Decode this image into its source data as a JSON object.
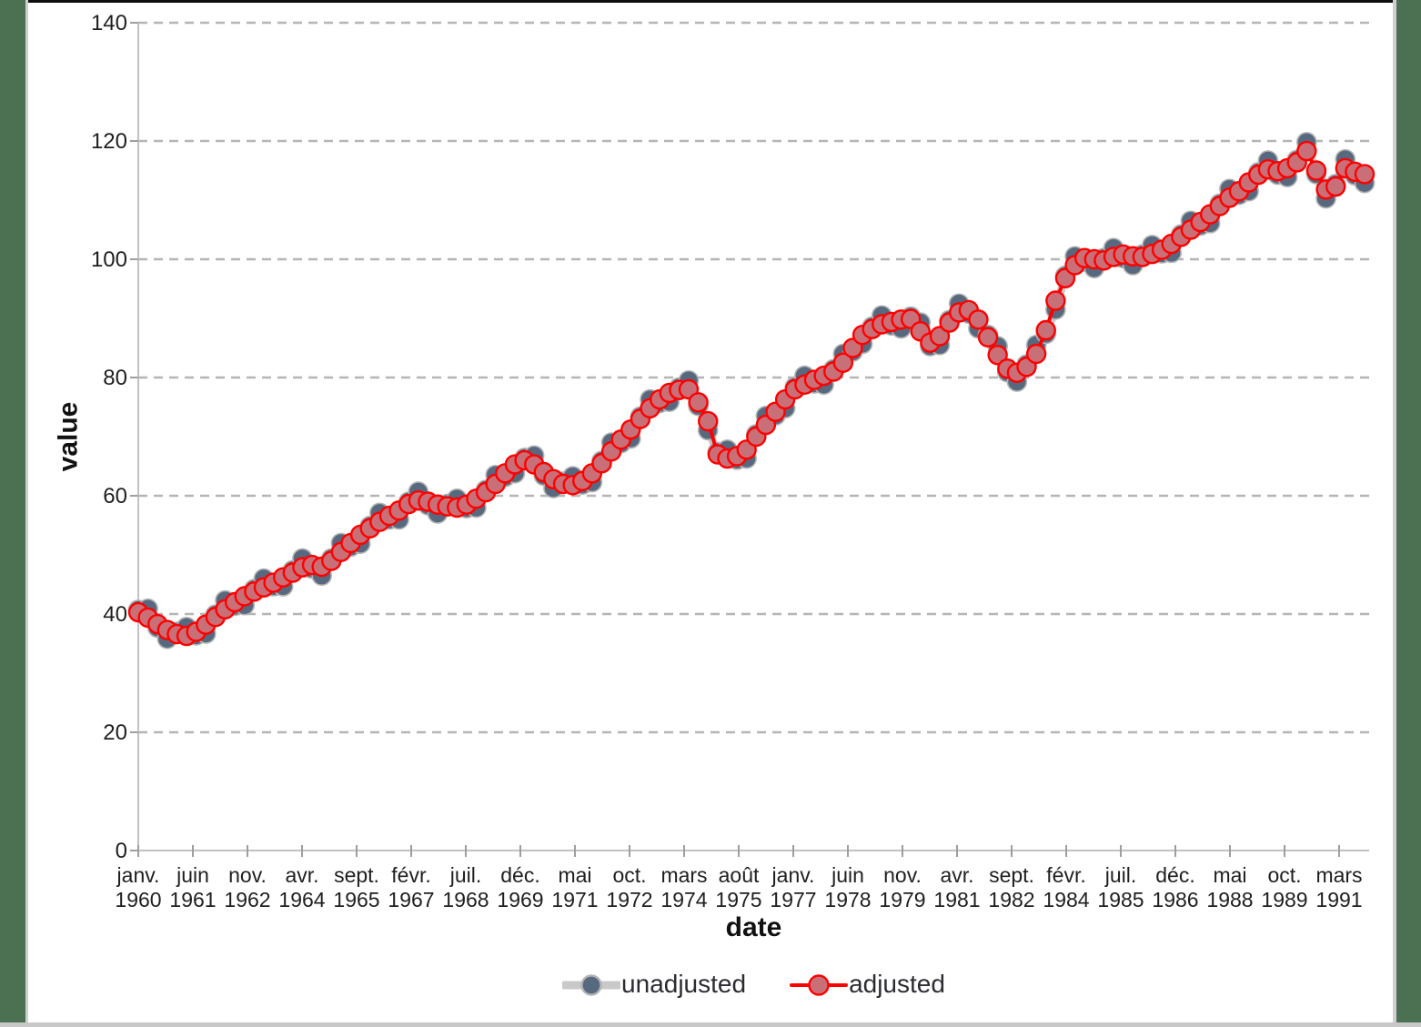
{
  "page": {
    "background": "#ffffff",
    "side_strip_color": "#4c7152",
    "top_bar_color": "#0d0d0d",
    "bottom_bar_color": "#c8c8c8"
  },
  "chart_data": {
    "type": "line",
    "title": "",
    "xlabel": "date",
    "ylabel": "value",
    "ylim": [
      0,
      140
    ],
    "y_ticks": [
      0,
      20,
      40,
      60,
      80,
      100,
      120,
      140
    ],
    "grid": "horizontal dashed gridlines",
    "legend_position": "bottom-center",
    "x_note": "quarterly points read off the chart, janv. 1960 to dec. 1991",
    "x_ticks": [
      {
        "month": "janv.",
        "year": "1960"
      },
      {
        "month": "juin",
        "year": "1961"
      },
      {
        "month": "nov.",
        "year": "1962"
      },
      {
        "month": "avr.",
        "year": "1964"
      },
      {
        "month": "sept.",
        "year": "1965"
      },
      {
        "month": "févr.",
        "year": "1967"
      },
      {
        "month": "juil.",
        "year": "1968"
      },
      {
        "month": "déc.",
        "year": "1969"
      },
      {
        "month": "mai",
        "year": "1971"
      },
      {
        "month": "oct.",
        "year": "1972"
      },
      {
        "month": "mars",
        "year": "1974"
      },
      {
        "month": "août",
        "year": "1975"
      },
      {
        "month": "janv.",
        "year": "1977"
      },
      {
        "month": "juin",
        "year": "1978"
      },
      {
        "month": "nov.",
        "year": "1979"
      },
      {
        "month": "avr.",
        "year": "1981"
      },
      {
        "month": "sept.",
        "year": "1982"
      },
      {
        "month": "févr.",
        "year": "1984"
      },
      {
        "month": "juil.",
        "year": "1985"
      },
      {
        "month": "déc.",
        "year": "1986"
      },
      {
        "month": "mai",
        "year": "1988"
      },
      {
        "month": "oct.",
        "year": "1989"
      },
      {
        "month": "mars",
        "year": "1991"
      }
    ],
    "series": [
      {
        "name": "unadjusted",
        "line_color": "#c9c9c9",
        "line_width": 9,
        "marker_fill": "#56697f",
        "marker_stroke": "#b3b3b3",
        "values": [
          40.7,
          40.9,
          37.7,
          35.8,
          37.0,
          37.8,
          36.4,
          36.7,
          39.9,
          42.3,
          41.4,
          41.5,
          44.2,
          46.0,
          44.7,
          44.7,
          47.4,
          49.4,
          47.7,
          46.5,
          49.4,
          52.0,
          51.4,
          51.9,
          54.9,
          57.1,
          56.0,
          56.0,
          59.0,
          60.7,
          58.4,
          57.0,
          58.6,
          59.5,
          57.9,
          58.0,
          61.0,
          63.5,
          63.2,
          63.8,
          66.4,
          66.8,
          63.4,
          61.3,
          62.4,
          63.3,
          61.9,
          62.3,
          65.9,
          69.0,
          68.9,
          69.7,
          73.4,
          76.3,
          75.7,
          75.9,
          78.3,
          79.5,
          75.2,
          71.1,
          67.4,
          67.8,
          66.1,
          66.3,
          70.4,
          73.5,
          73.6,
          74.8,
          78.4,
          80.3,
          79.0,
          78.8,
          81.4,
          84.0,
          84.4,
          85.7,
          88.6,
          90.5,
          88.8,
          88.3,
          90.3,
          89.3,
          85.3,
          85.5,
          89.7,
          92.5,
          90.8,
          88.3,
          87.2,
          85.3,
          80.9,
          79.3,
          82.2,
          85.5,
          87.4,
          91.5,
          97.2,
          100.5,
          99.6,
          98.5,
          100.2,
          101.9,
          100.2,
          99.0,
          100.8,
          102.4,
          101.0,
          101.1,
          104.2,
          106.5,
          105.7,
          106.1,
          109.4,
          111.9,
          110.9,
          111.5,
          114.7,
          116.7,
          114.3,
          113.9,
          116.8,
          119.8,
          114.4,
          110.3,
          112.7,
          116.9,
          114.2,
          112.9
        ]
      },
      {
        "name": "adjusted",
        "line_color": "#ff0000",
        "line_width": 4,
        "marker_fill": "#c96f77",
        "marker_stroke": "#ff0000",
        "values": [
          40.3,
          39.4,
          38.3,
          37.3,
          36.6,
          36.3,
          37.0,
          38.2,
          39.5,
          40.8,
          42.0,
          43.0,
          43.8,
          44.5,
          45.3,
          46.2,
          47.0,
          47.9,
          48.3,
          48.0,
          49.0,
          50.5,
          52.0,
          53.4,
          54.5,
          55.6,
          56.6,
          57.5,
          58.6,
          59.2,
          59.0,
          58.5,
          58.2,
          58.0,
          58.5,
          59.5,
          60.6,
          62.0,
          63.8,
          65.3,
          66.0,
          65.3,
          64.0,
          62.8,
          62.0,
          61.8,
          62.5,
          63.8,
          65.5,
          67.5,
          69.5,
          71.2,
          73.0,
          74.8,
          76.3,
          77.4,
          77.9,
          78.0,
          75.8,
          72.6,
          67.0,
          66.3,
          66.7,
          67.8,
          70.0,
          72.0,
          74.2,
          76.3,
          78.0,
          78.8,
          79.6,
          80.3,
          81.0,
          82.5,
          85.0,
          87.2,
          88.2,
          89.0,
          89.4,
          89.8,
          89.9,
          87.8,
          85.9,
          87.0,
          89.3,
          91.0,
          91.4,
          89.8,
          86.8,
          83.8,
          81.5,
          80.8,
          81.8,
          84.0,
          88.0,
          93.0,
          96.8,
          99.0,
          100.2,
          100.0,
          99.8,
          100.4,
          100.8,
          100.5,
          100.4,
          100.9,
          101.6,
          102.6,
          103.8,
          105.0,
          106.3,
          107.6,
          109.0,
          110.4,
          111.5,
          113.0,
          114.3,
          115.2,
          114.9,
          115.4,
          116.4,
          118.3,
          115.0,
          111.8,
          112.3,
          115.4,
          114.8,
          114.4
        ]
      }
    ]
  }
}
